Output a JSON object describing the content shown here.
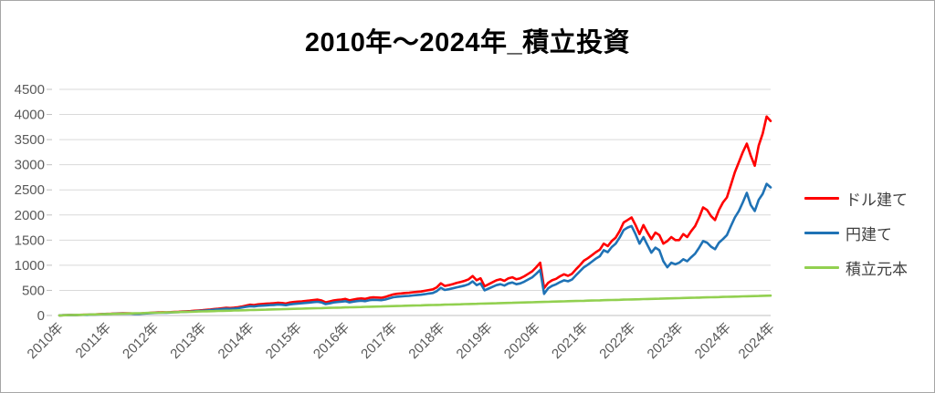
{
  "title": "2010年～2024年_積立投資",
  "colors": {
    "background": "#ffffff",
    "border": "#a6a6a6",
    "gridline": "#d9d9d9",
    "axis_line": "#bfbfbf",
    "axis_text": "#595959",
    "legend_text": "#3f3f3f"
  },
  "legend": {
    "items": [
      {
        "label": "ドル建て",
        "color": "#ff0000"
      },
      {
        "label": "円建て",
        "color": "#1f72b5"
      },
      {
        "label": "積立元本",
        "color": "#92d050"
      }
    ]
  },
  "chart_data": {
    "type": "line",
    "title": "2010年～2024年_積立投資",
    "xlabel": "",
    "ylabel": "",
    "ylim": [
      0,
      4500
    ],
    "y_ticks": [
      0,
      500,
      1000,
      1500,
      2000,
      2500,
      3000,
      3500,
      4000,
      4500
    ],
    "grid": true,
    "legend_position": "right",
    "x_unit": "months from 2010-01 to 2024-12",
    "x_tick_labels": [
      "2010年",
      "2011年",
      "2012年",
      "2013年",
      "2014年",
      "2015年",
      "2016年",
      "2017年",
      "2018年",
      "2019年",
      "2020年",
      "2021年",
      "2022年",
      "2023年",
      "2024年",
      "2024年"
    ],
    "x_tick_month_indices": [
      0,
      12,
      24,
      36,
      48,
      60,
      72,
      84,
      96,
      108,
      120,
      132,
      144,
      156,
      168,
      179
    ],
    "series": [
      {
        "name": "ドル建て",
        "color": "#ff0000",
        "stroke_width": 2.6,
        "values": [
          2,
          5,
          8,
          10,
          9,
          13,
          15,
          14,
          18,
          21,
          25,
          29,
          32,
          35,
          38,
          41,
          44,
          45,
          42,
          36,
          38,
          43,
          48,
          53,
          58,
          62,
          66,
          63,
          68,
          72,
          75,
          79,
          83,
          88,
          94,
          99,
          105,
          112,
          120,
          128,
          136,
          145,
          152,
          148,
          156,
          165,
          180,
          198,
          215,
          208,
          222,
          228,
          235,
          240,
          245,
          252,
          248,
          238,
          258,
          268,
          275,
          282,
          290,
          298,
          308,
          315,
          300,
          262,
          280,
          300,
          310,
          318,
          330,
          302,
          318,
          332,
          340,
          330,
          352,
          362,
          358,
          352,
          368,
          395,
          420,
          432,
          440,
          448,
          452,
          462,
          470,
          478,
          492,
          506,
          520,
          560,
          640,
          588,
          605,
          625,
          648,
          668,
          690,
          720,
          785,
          700,
          740,
          580,
          620,
          660,
          700,
          720,
          690,
          740,
          760,
          720,
          740,
          780,
          830,
          880,
          960,
          1050,
          545,
          650,
          700,
          730,
          780,
          820,
          790,
          830,
          920,
          1000,
          1090,
          1140,
          1200,
          1260,
          1310,
          1430,
          1380,
          1480,
          1550,
          1680,
          1850,
          1900,
          1950,
          1800,
          1620,
          1800,
          1650,
          1520,
          1650,
          1600,
          1430,
          1480,
          1560,
          1500,
          1500,
          1620,
          1560,
          1680,
          1780,
          1950,
          2150,
          2100,
          1980,
          1900,
          2100,
          2250,
          2350,
          2600,
          2850,
          3050,
          3250,
          3420,
          3180,
          2980,
          3380,
          3620,
          3960,
          3870
        ]
      },
      {
        "name": "円建て",
        "color": "#1f72b5",
        "stroke_width": 2.6,
        "values": [
          2,
          5,
          7,
          9,
          8,
          12,
          13,
          12,
          16,
          19,
          22,
          26,
          29,
          31,
          34,
          36,
          39,
          40,
          37,
          32,
          33,
          38,
          42,
          47,
          51,
          55,
          58,
          56,
          60,
          64,
          67,
          70,
          74,
          78,
          84,
          89,
          94,
          100,
          107,
          114,
          121,
          129,
          135,
          131,
          138,
          146,
          159,
          172,
          185,
          179,
          191,
          196,
          202,
          207,
          211,
          217,
          214,
          205,
          222,
          231,
          238,
          244,
          251,
          258,
          266,
          272,
          259,
          226,
          242,
          259,
          268,
          275,
          285,
          261,
          275,
          287,
          294,
          285,
          304,
          313,
          309,
          304,
          318,
          341,
          362,
          373,
          380,
          387,
          390,
          399,
          406,
          413,
          425,
          437,
          449,
          484,
          552,
          508,
          522,
          540,
          560,
          577,
          596,
          622,
          678,
          604,
          639,
          501,
          535,
          570,
          604,
          622,
          596,
          639,
          656,
          622,
          639,
          674,
          717,
          760,
          829,
          907,
          430,
          540,
          590,
          620,
          665,
          700,
          680,
          715,
          800,
          880,
          960,
          1010,
          1070,
          1130,
          1180,
          1300,
          1260,
          1360,
          1430,
          1550,
          1700,
          1750,
          1780,
          1620,
          1430,
          1560,
          1400,
          1250,
          1350,
          1300,
          1080,
          960,
          1050,
          1020,
          1050,
          1120,
          1080,
          1160,
          1230,
          1350,
          1480,
          1450,
          1370,
          1320,
          1450,
          1520,
          1600,
          1780,
          1950,
          2080,
          2250,
          2440,
          2200,
          2080,
          2300,
          2420,
          2620,
          2550
        ]
      },
      {
        "name": "積立元本",
        "color": "#92d050",
        "stroke_width": 2.6,
        "values": [
          2,
          4,
          7,
          9,
          11,
          13,
          15,
          18,
          20,
          22,
          24,
          26,
          29,
          31,
          33,
          35,
          37,
          40,
          42,
          44,
          46,
          48,
          51,
          53,
          55,
          57,
          59,
          62,
          64,
          66,
          68,
          70,
          73,
          75,
          77,
          79,
          81,
          84,
          86,
          88,
          90,
          92,
          95,
          97,
          99,
          101,
          103,
          106,
          108,
          110,
          112,
          114,
          117,
          119,
          121,
          123,
          125,
          128,
          130,
          132,
          134,
          136,
          139,
          141,
          143,
          145,
          147,
          150,
          152,
          154,
          156,
          158,
          161,
          163,
          165,
          167,
          169,
          172,
          174,
          176,
          178,
          180,
          183,
          185,
          187,
          189,
          191,
          194,
          196,
          198,
          200,
          202,
          205,
          207,
          209,
          211,
          213,
          216,
          218,
          220,
          222,
          224,
          227,
          229,
          231,
          233,
          235,
          238,
          240,
          242,
          244,
          246,
          249,
          251,
          253,
          255,
          257,
          260,
          262,
          264,
          266,
          268,
          271,
          273,
          275,
          277,
          279,
          282,
          284,
          286,
          288,
          290,
          293,
          295,
          297,
          299,
          301,
          304,
          306,
          308,
          310,
          312,
          315,
          317,
          319,
          321,
          323,
          326,
          328,
          330,
          332,
          334,
          337,
          339,
          341,
          343,
          345,
          348,
          350,
          352,
          354,
          356,
          359,
          361,
          363,
          365,
          367,
          370,
          372,
          374,
          376,
          378,
          381,
          383,
          385,
          387,
          389,
          392,
          394,
          396
        ]
      }
    ]
  }
}
